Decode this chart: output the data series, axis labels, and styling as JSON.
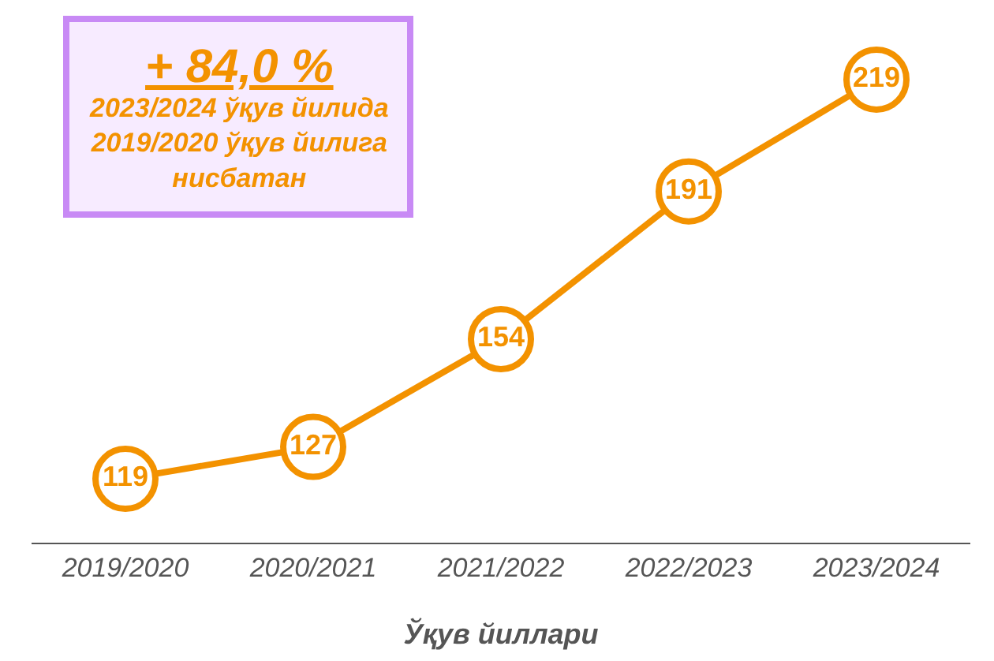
{
  "chart_data": {
    "type": "line",
    "xlabel": "Ўқув йиллари",
    "categories": [
      "2019/2020",
      "2020/2021",
      "2021/2022",
      "2022/2023",
      "2023/2024"
    ],
    "series": [
      {
        "color": "#f39200",
        "values": [
          119,
          127,
          154,
          191,
          219
        ]
      }
    ],
    "data_labels": true,
    "marker": "circle",
    "line_style": "solid",
    "tick_labels": "x",
    "annotations": [
      "+ 84,0 %",
      "2023/2024 ўқув йилида",
      "2019/2020 ўқув йилига",
      "нисбатан"
    ]
  }
}
